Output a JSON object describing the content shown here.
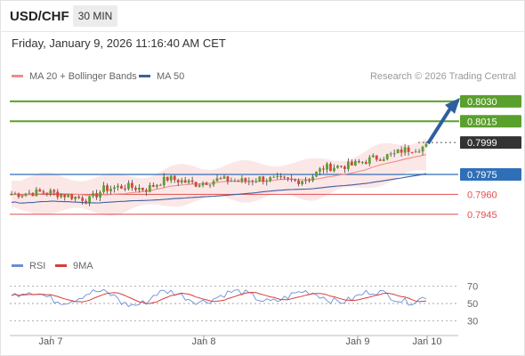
{
  "header": {
    "symbol": "USD/CHF",
    "timeframe": "30 MIN"
  },
  "timestamp": "Friday, January 9, 2026 11:16:40 AM CET",
  "legend": {
    "ma20_label": "MA 20 + Bollinger Bands",
    "ma50_label": "MA 50",
    "rsi_label": "RSI",
    "ma9_label": "9MA"
  },
  "credit": "Research © 2026 Trading Central",
  "colors": {
    "ma20": "#f08c8c",
    "ma50": "#3d5f9f",
    "bollinger_fill": "#fbe3e3",
    "resistance": "#5aa02c",
    "pivot": "#2f6fb8",
    "support": "#e05050",
    "last_price": "#333333",
    "arrow": "#2d5f9e",
    "candle_up": "#5aa02c",
    "candle_down": "#d9443a",
    "rsi": "#6b8fd6",
    "rsi_ma": "#d93b3b"
  },
  "chart_data": [
    {
      "type": "candlestick",
      "title": "USD/CHF 30 MIN",
      "x_tick_labels": [
        "Jan 7",
        "Jan 8",
        "Jan 9",
        "Jan 10"
      ],
      "ylim": [
        0.7912,
        0.8042
      ],
      "price_levels": [
        {
          "label": "0.8030",
          "value": 0.803,
          "kind": "resistance"
        },
        {
          "label": "0.8015",
          "value": 0.8015,
          "kind": "resistance"
        },
        {
          "label": "0.7999",
          "value": 0.7999,
          "kind": "last"
        },
        {
          "label": "0.7975",
          "value": 0.7975,
          "kind": "pivot"
        },
        {
          "label": "0.7960",
          "value": 0.796,
          "kind": "support"
        },
        {
          "label": "0.7945",
          "value": 0.7945,
          "kind": "support"
        }
      ],
      "projection": {
        "from": 0.7999,
        "to": 0.803,
        "direction": "up"
      },
      "indicators": [
        "MA 20 + Bollinger Bands",
        "MA 50"
      ]
    },
    {
      "type": "line",
      "title": "RSI",
      "series": [
        {
          "name": "RSI"
        },
        {
          "name": "9MA"
        }
      ],
      "y_tick_labels": [
        "70",
        "50",
        "30"
      ],
      "ylim": [
        20,
        80
      ]
    }
  ]
}
